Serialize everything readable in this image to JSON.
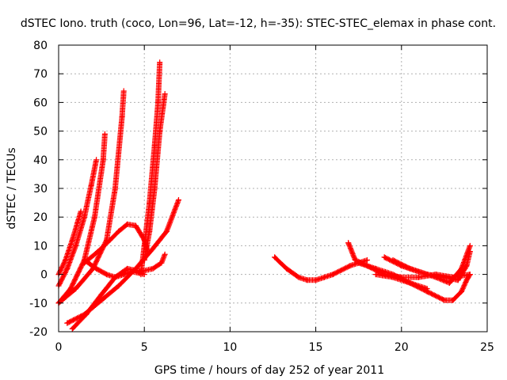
{
  "chart_data": {
    "type": "scatter",
    "title": "dSTEC Iono. truth (coco, Lon=96, Lat=-12, h=-35): STEC-STEC_elemax in phase cont.",
    "xlabel": "GPS time / hours of day 252 of year 2011",
    "ylabel": "dSTEC  / TECUs",
    "xlim": [
      0,
      25
    ],
    "ylim": [
      -20,
      80
    ],
    "x_ticks": [
      "0",
      "5",
      "10",
      "15",
      "20",
      "25"
    ],
    "y_ticks": [
      "-20",
      "-10",
      "0",
      "10",
      "20",
      "30",
      "40",
      "50",
      "60",
      "70",
      "80"
    ],
    "grid": true,
    "marker": "+",
    "color": "#ff0000",
    "series": [
      {
        "x": [
          0.0,
          0.4,
          0.8,
          1.1,
          1.3
        ],
        "y": [
          0,
          5,
          12,
          18,
          22
        ]
      },
      {
        "x": [
          0.0,
          0.5,
          1.0,
          1.5,
          1.9,
          2.2
        ],
        "y": [
          -4,
          2,
          10,
          20,
          31,
          40
        ]
      },
      {
        "x": [
          0.0,
          0.7,
          1.5,
          2.1,
          2.6,
          2.7
        ],
        "y": [
          -10,
          -5,
          5,
          20,
          40,
          49
        ]
      },
      {
        "x": [
          0.0,
          1.0,
          2.0,
          2.8,
          3.3,
          3.7,
          3.8
        ],
        "y": [
          -10,
          -5,
          2,
          12,
          30,
          55,
          64
        ]
      },
      {
        "x": [
          1.5,
          2.3,
          3.0,
          3.5,
          4.0,
          4.5,
          5.0,
          5.2
        ],
        "y": [
          4,
          8,
          12,
          15,
          17.5,
          17,
          12,
          8
        ]
      },
      {
        "x": [
          4.8,
          5.0,
          5.3,
          5.6,
          5.8,
          5.9
        ],
        "y": [
          0,
          10,
          25,
          45,
          60,
          74
        ]
      },
      {
        "x": [
          5.0,
          5.3,
          5.6,
          5.9,
          6.2
        ],
        "y": [
          5,
          15,
          30,
          50,
          63
        ]
      },
      {
        "x": [
          0.5,
          1.5,
          2.5,
          3.5,
          4.5,
          5.5,
          6.3,
          7.0
        ],
        "y": [
          -17,
          -14,
          -9,
          -4,
          2,
          9,
          15,
          26
        ]
      },
      {
        "x": [
          0.8,
          1.6,
          2.5,
          3.3,
          4.0,
          4.8,
          5.5,
          6.0,
          6.2
        ],
        "y": [
          -19,
          -14,
          -7,
          -1,
          2,
          1,
          2,
          4,
          7
        ]
      },
      {
        "x": [
          1.5,
          2.2,
          2.8,
          3.3,
          3.8,
          4.3,
          5.0
        ],
        "y": [
          5,
          2,
          0,
          -1,
          0,
          1,
          0
        ]
      },
      {
        "x": [
          12.6,
          13.3,
          14.0,
          14.5,
          15.0,
          15.5,
          16.0,
          17.0,
          18.0
        ],
        "y": [
          6,
          2,
          -1,
          -2,
          -2,
          -1,
          0,
          3,
          5
        ]
      },
      {
        "x": [
          16.9,
          17.3,
          18.0,
          19.0,
          20.0,
          21.0,
          22.0,
          23.0,
          24.0
        ],
        "y": [
          11,
          5,
          3,
          0,
          -1,
          -1,
          0,
          -1,
          0
        ]
      },
      {
        "x": [
          17.5,
          18.5,
          19.5,
          20.5,
          21.5,
          22.5,
          23.0,
          23.5,
          23.8,
          24.0
        ],
        "y": [
          4,
          2,
          0,
          -3,
          -6,
          -9,
          -9,
          -6,
          -2,
          0
        ]
      },
      {
        "x": [
          19.0,
          20.0,
          21.0,
          22.0,
          22.8,
          23.5,
          24.0
        ],
        "y": [
          6,
          3,
          1,
          -1,
          -3,
          2,
          10
        ]
      },
      {
        "x": [
          19.5,
          20.5,
          21.5,
          22.5,
          23.3,
          23.8,
          24.0
        ],
        "y": [
          5,
          2,
          0,
          -1,
          -2,
          3,
          8
        ]
      },
      {
        "x": [
          18.5,
          19.5,
          20.5,
          21.5
        ],
        "y": [
          0,
          -1,
          -3,
          -5
        ]
      }
    ]
  }
}
